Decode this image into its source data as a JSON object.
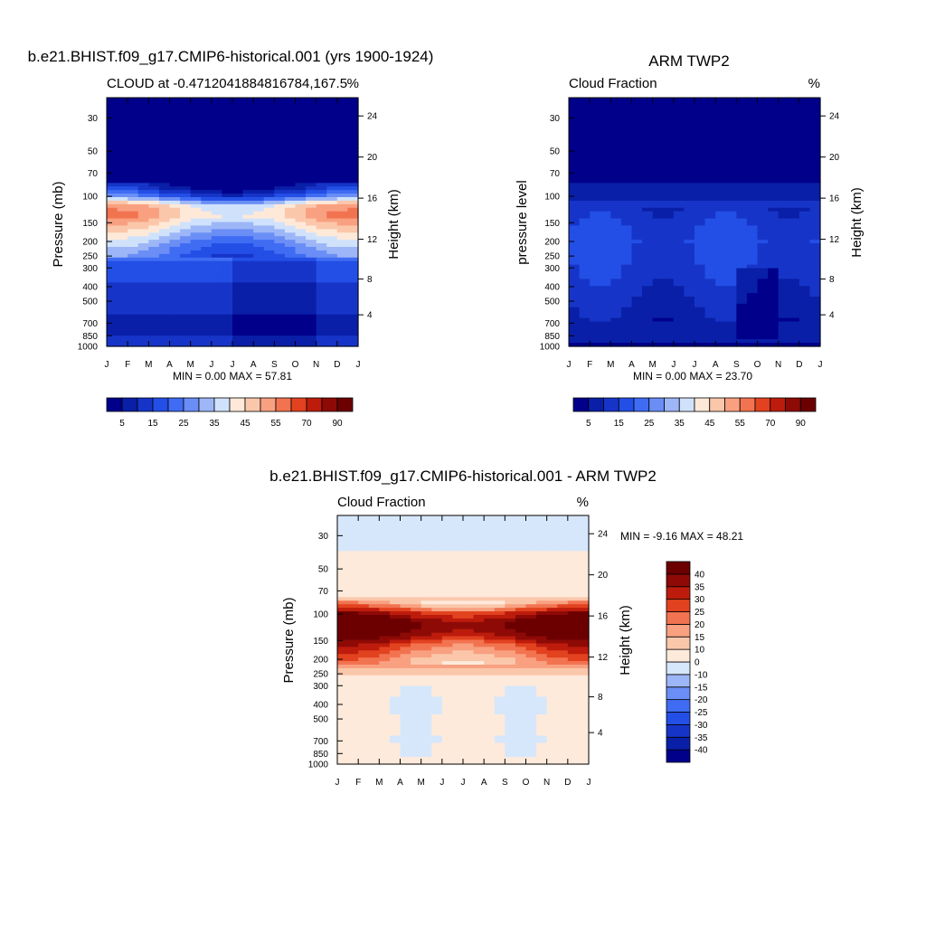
{
  "chart_data": [
    {
      "type": "heatmap",
      "id": "model",
      "title": "b.e21.BHIST.f09_g17.CMIP6-historical.001 (yrs 1900-1924)",
      "left_label": "CLOUD at -0.4712041884816784,167.5",
      "right_label": "%",
      "ylabel": "Pressure (mb)",
      "ylabel_right": "Height (km)",
      "x_ticks": [
        "J",
        "F",
        "M",
        "A",
        "M",
        "J",
        "J",
        "A",
        "S",
        "O",
        "N",
        "D",
        "J"
      ],
      "y_ticks": [
        "30",
        "50",
        "70",
        "100",
        "150",
        "200",
        "250",
        "300",
        "400",
        "500",
        "700",
        "850",
        "1000"
      ],
      "y_tick_values": [
        30,
        50,
        70,
        100,
        150,
        200,
        250,
        300,
        400,
        500,
        700,
        850,
        1000
      ],
      "height_ticks": [
        "24",
        "20",
        "16",
        "12",
        "8",
        "4"
      ],
      "height_tick_values": [
        24,
        20,
        16,
        12,
        8,
        4
      ],
      "ylim": [
        1000,
        22
      ],
      "min_max_text": "MIN =   0.00 MAX =  57.81",
      "colorbar": {
        "orientation": "horizontal",
        "levels": [
          5,
          10,
          15,
          20,
          25,
          30,
          35,
          40,
          45,
          50,
          55,
          60,
          70,
          80,
          90
        ],
        "labels": [
          "5",
          "15",
          "25",
          "35",
          "45",
          "55",
          "70",
          "90"
        ],
        "colors": [
          "#00008b",
          "#0a1fa8",
          "#1635c8",
          "#234fe6",
          "#3f6cf3",
          "#6a8ef5",
          "#9db6f7",
          "#d0e2fb",
          "#fee9d9",
          "#fbc7ab",
          "#f8a080",
          "#f27350",
          "#e2421f",
          "#bd1c0c",
          "#8e0a06",
          "#6c0000"
        ]
      },
      "profile": {
        "levels": [
          30,
          50,
          70,
          85,
          100,
          115,
          135,
          160,
          200,
          250,
          300,
          400,
          500,
          700,
          850,
          1000
        ],
        "values": [
          2,
          2,
          2,
          5,
          20,
          45,
          49,
          40,
          30,
          22,
          18,
          14,
          12,
          9,
          10,
          10
        ]
      }
    },
    {
      "type": "heatmap",
      "id": "obs",
      "title": "ARM TWP2",
      "left_label": "Cloud Fraction",
      "right_label": "%",
      "ylabel": "pressure level",
      "ylabel_right": "Height (km)",
      "x_ticks": [
        "J",
        "F",
        "M",
        "A",
        "M",
        "J",
        "J",
        "A",
        "S",
        "O",
        "N",
        "D",
        "J"
      ],
      "y_ticks": [
        "30",
        "50",
        "70",
        "100",
        "150",
        "200",
        "250",
        "300",
        "400",
        "500",
        "700",
        "850",
        "1000"
      ],
      "y_tick_values": [
        30,
        50,
        70,
        100,
        150,
        200,
        250,
        300,
        400,
        500,
        700,
        850,
        1000
      ],
      "height_ticks": [
        "24",
        "20",
        "16",
        "12",
        "8",
        "4"
      ],
      "height_tick_values": [
        24,
        20,
        16,
        12,
        8,
        4
      ],
      "ylim": [
        1000,
        22
      ],
      "min_max_text": "MIN =   0.00 MAX =  23.70",
      "colorbar": {
        "orientation": "horizontal",
        "levels": [
          5,
          10,
          15,
          20,
          25,
          30,
          35,
          40,
          45,
          50,
          55,
          60,
          70,
          80,
          90
        ],
        "labels": [
          "5",
          "15",
          "25",
          "35",
          "45",
          "55",
          "70",
          "90"
        ],
        "colors": [
          "#00008b",
          "#0a1fa8",
          "#1635c8",
          "#234fe6",
          "#3f6cf3",
          "#6a8ef5",
          "#9db6f7",
          "#d0e2fb",
          "#fee9d9",
          "#fbc7ab",
          "#f8a080",
          "#f27350",
          "#e2421f",
          "#bd1c0c",
          "#8e0a06",
          "#6c0000"
        ]
      },
      "profile": {
        "levels": [
          30,
          50,
          70,
          100,
          150,
          200,
          250,
          300,
          400,
          500,
          700,
          850,
          1000
        ],
        "values": [
          1,
          1,
          2,
          9,
          14,
          16,
          15,
          14,
          12,
          10,
          7,
          10,
          3
        ]
      }
    },
    {
      "type": "heatmap",
      "id": "diff",
      "title": "b.e21.BHIST.f09_g17.CMIP6-historical.001 - ARM TWP2",
      "left_label": "Cloud Fraction",
      "right_label": "%",
      "ylabel": "Pressure (mb)",
      "ylabel_right": "Height (km)",
      "x_ticks": [
        "J",
        "F",
        "M",
        "A",
        "M",
        "J",
        "J",
        "A",
        "S",
        "O",
        "N",
        "D",
        "J"
      ],
      "y_ticks": [
        "30",
        "50",
        "70",
        "100",
        "150",
        "200",
        "250",
        "300",
        "400",
        "500",
        "700",
        "850",
        "1000"
      ],
      "y_tick_values": [
        30,
        50,
        70,
        100,
        150,
        200,
        250,
        300,
        400,
        500,
        700,
        850,
        1000
      ],
      "height_ticks": [
        "24",
        "20",
        "16",
        "12",
        "8",
        "4"
      ],
      "height_tick_values": [
        24,
        20,
        16,
        12,
        8,
        4
      ],
      "ylim": [
        1000,
        22
      ],
      "min_max_text": "MIN =  -9.16 MAX =  48.21",
      "colorbar": {
        "orientation": "vertical",
        "levels": [
          -40,
          -35,
          -30,
          -25,
          -20,
          -15,
          -10,
          0,
          10,
          15,
          20,
          25,
          30,
          35,
          40
        ],
        "labels": [
          "40",
          "35",
          "30",
          "25",
          "20",
          "15",
          "10",
          "0",
          "-10",
          "-15",
          "-20",
          "-25",
          "-30",
          "-35",
          "-40"
        ],
        "colors": [
          "#00008b",
          "#0a1fa8",
          "#1635c8",
          "#234fe6",
          "#3f6cf3",
          "#6a8ef5",
          "#9db6f7",
          "#d6e7fb",
          "#fdeadb",
          "#fbc7ab",
          "#f8a080",
          "#f27350",
          "#e2421f",
          "#bd1c0c",
          "#8e0a06",
          "#6c0000"
        ]
      },
      "profile": {
        "levels": [
          30,
          50,
          70,
          85,
          100,
          115,
          135,
          160,
          200,
          250,
          300,
          400,
          500,
          700,
          850,
          1000
        ],
        "values": [
          -3,
          3,
          5,
          14,
          35,
          45,
          42,
          28,
          18,
          12,
          3,
          0,
          2,
          1,
          3,
          2
        ]
      }
    }
  ]
}
